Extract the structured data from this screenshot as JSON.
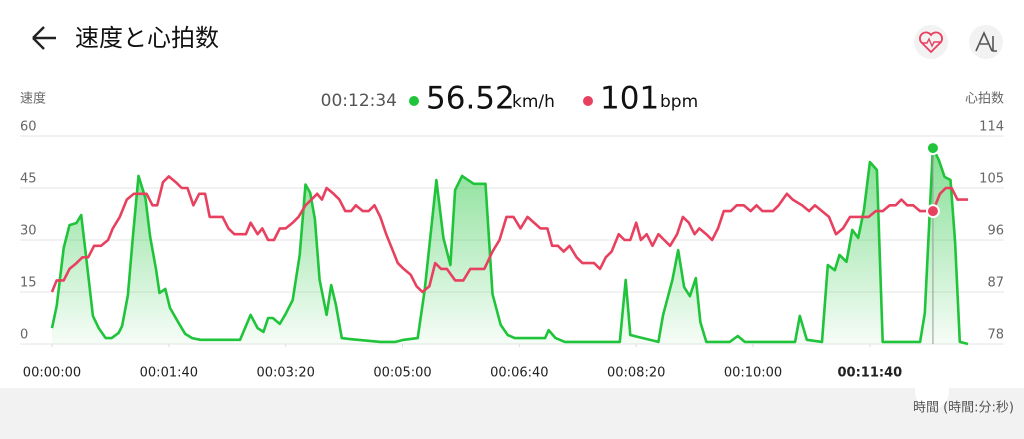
{
  "header": {
    "title": "速度と心拍数"
  },
  "readout": {
    "time": "00:12:34",
    "speed": 56.52,
    "speed_unit": "km/h",
    "heart_rate": 101,
    "heart_rate_unit": "bpm"
  },
  "chart_data": {
    "type": "line",
    "ylabel": "速度",
    "y2label": "心拍数",
    "xlabel": "時間 (時間:分:秒)",
    "xlim": [
      0,
      784
    ],
    "xticks": [
      {
        "value": 0,
        "label": "00:00:00"
      },
      {
        "value": 100,
        "label": "00:01:40"
      },
      {
        "value": 200,
        "label": "00:03:20"
      },
      {
        "value": 300,
        "label": "00:05:00"
      },
      {
        "value": 400,
        "label": "00:06:40"
      },
      {
        "value": 500,
        "label": "00:08:20"
      },
      {
        "value": 600,
        "label": "00:10:00"
      },
      {
        "value": 700,
        "label": "00:11:40"
      }
    ],
    "bold_xtick": 7,
    "ylim": [
      0,
      60
    ],
    "yticks": [
      0,
      15,
      30,
      45,
      60
    ],
    "y2lim": [
      78,
      114
    ],
    "y2ticks": [
      78,
      87,
      96,
      105,
      114
    ],
    "grid": true,
    "cursor": 754,
    "series": [
      {
        "color": "#1fc43a",
        "fill": true,
        "x": [
          0,
          4,
          10,
          15,
          21,
          25,
          29,
          35,
          40,
          46,
          51,
          57,
          60,
          65,
          69,
          74,
          80,
          84,
          89,
          92,
          97,
          101,
          108,
          114,
          120,
          127,
          161,
          170,
          176,
          181,
          185,
          189,
          195,
          200,
          206,
          212,
          217,
          221,
          225,
          229,
          235,
          239,
          243,
          248,
          255,
          281,
          294,
          301,
          313,
          319,
          329,
          335,
          341,
          345,
          351,
          356,
          361,
          371,
          377,
          384,
          390,
          396,
          422,
          425,
          431,
          439,
          486,
          491,
          495,
          519,
          523,
          531,
          536,
          541,
          546,
          551,
          555,
          560,
          580,
          587,
          593,
          636,
          640,
          646,
          659,
          664,
          670,
          674,
          680,
          685,
          690,
          695,
          700,
          706,
          711,
          743,
          747,
          754,
          759,
          764,
          769,
          773,
          777,
          784
        ],
        "values": [
          4.6,
          11,
          27.7,
          34.3,
          34.9,
          37.2,
          25.7,
          8.1,
          4.6,
          1.7,
          1.7,
          3.2,
          5.2,
          14.1,
          30,
          48.5,
          42,
          31,
          21.6,
          14.7,
          15.9,
          10.4,
          6.3,
          2.9,
          1.7,
          1.2,
          1.2,
          8.4,
          4.6,
          3.5,
          7.5,
          7.5,
          5.8,
          8.7,
          12.7,
          25.7,
          46,
          43.6,
          36,
          18.5,
          8.4,
          17,
          11.3,
          1.7,
          1.4,
          0.6,
          0.6,
          1.2,
          1.7,
          15.6,
          47.3,
          30.6,
          22.8,
          44.4,
          48.5,
          47.3,
          46.2,
          46.2,
          14.4,
          5.5,
          2.6,
          1.7,
          1.7,
          4,
          1.7,
          0.6,
          0.6,
          18.5,
          2.6,
          0.6,
          8.4,
          18.5,
          27.1,
          16.4,
          13.8,
          19,
          6.3,
          0.6,
          0.6,
          2.3,
          0.6,
          0.6,
          8.1,
          1.2,
          0.6,
          22.8,
          21.3,
          25.7,
          23.7,
          32.9,
          30.6,
          38.7,
          52.5,
          50.2,
          0.6,
          0.6,
          8.9,
          56.52,
          53.1,
          48.2,
          47.3,
          29.4,
          0.6,
          0
        ]
      },
      {
        "color": "#e8405f",
        "axis": "y2",
        "x": [
          0,
          4,
          10,
          15,
          21,
          26,
          31,
          36,
          42,
          48,
          52,
          58,
          64,
          70,
          76,
          81,
          86,
          90,
          95,
          100,
          106,
          111,
          116,
          121,
          126,
          131,
          135,
          146,
          151,
          156,
          166,
          170,
          176,
          180,
          185,
          190,
          195,
          200,
          206,
          211,
          217,
          222,
          227,
          231,
          235,
          241,
          246,
          251,
          256,
          260,
          266,
          271,
          276,
          281,
          286,
          292,
          296,
          301,
          307,
          312,
          317,
          323,
          328,
          333,
          338,
          345,
          352,
          358,
          370,
          377,
          383,
          389,
          395,
          401,
          407,
          418,
          424,
          428,
          433,
          438,
          443,
          449,
          454,
          459,
          464,
          469,
          474,
          479,
          485,
          490,
          495,
          500,
          504,
          509,
          514,
          519,
          524,
          529,
          535,
          540,
          545,
          550,
          554,
          560,
          565,
          570,
          575,
          581,
          586,
          592,
          598,
          603,
          608,
          617,
          622,
          629,
          634,
          642,
          648,
          653,
          659,
          665,
          671,
          677,
          683,
          689,
          699,
          705,
          711,
          717,
          722,
          727,
          732,
          737,
          743,
          749,
          754,
          760,
          765,
          770,
          775,
          784
        ],
        "values": [
          87,
          89,
          89,
          91,
          92,
          93,
          93,
          95,
          95,
          96,
          98,
          100,
          103,
          104,
          104,
          104,
          102,
          102,
          106,
          107,
          106,
          105,
          105,
          102,
          104,
          104,
          100,
          100,
          98,
          97,
          97,
          99,
          97,
          98,
          96,
          96,
          98,
          98,
          99,
          100,
          102,
          103,
          104,
          103,
          105,
          104,
          103,
          101,
          101,
          102,
          101,
          101,
          102,
          100,
          97,
          94,
          92,
          91,
          90,
          88,
          87,
          88,
          92,
          91,
          91,
          89,
          89,
          91,
          91,
          94,
          96,
          100,
          100,
          98,
          100,
          98,
          98,
          95,
          95,
          94,
          95,
          93,
          92,
          92,
          92,
          91,
          93,
          94,
          97,
          96,
          96,
          99,
          96,
          97,
          95,
          97,
          96,
          95,
          97,
          100,
          99,
          97,
          98,
          97,
          96,
          98,
          101,
          101,
          102,
          102,
          101,
          102,
          101,
          101,
          102,
          104,
          103,
          102,
          101,
          102,
          101,
          100,
          97,
          98,
          100,
          100,
          100,
          101,
          101,
          102,
          102,
          103,
          102,
          102,
          101,
          101,
          101,
          104,
          105,
          105,
          103,
          103
        ]
      }
    ]
  }
}
